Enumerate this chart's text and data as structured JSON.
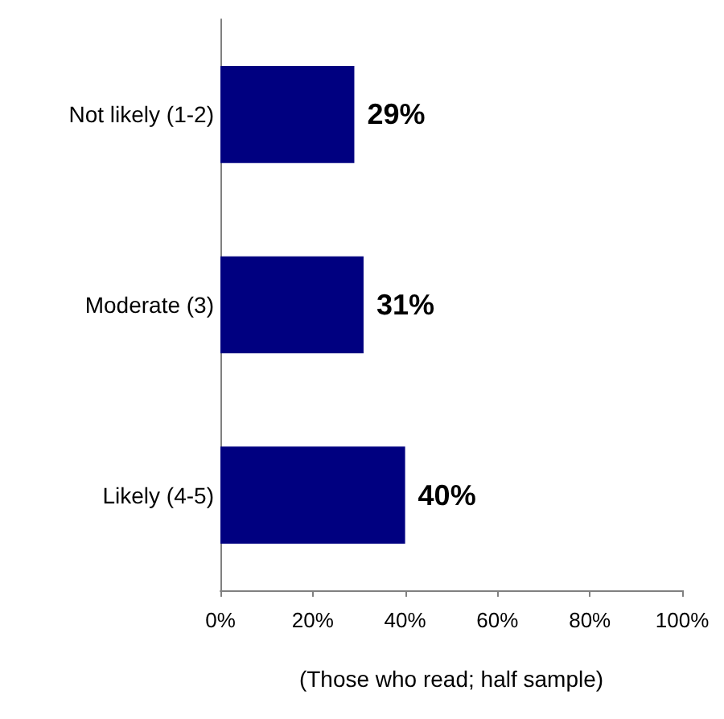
{
  "chart_data": {
    "type": "bar",
    "orientation": "horizontal",
    "categories": [
      "Not likely (1-2)",
      "Moderate (3)",
      "Likely (4-5)"
    ],
    "values": [
      29,
      31,
      40
    ],
    "value_labels": [
      "29%",
      "31%",
      "40%"
    ],
    "color": "#000080",
    "xlabel": "(Those who read; half sample)",
    "xlim": [
      0,
      100
    ],
    "xticks": [
      {
        "value": 0,
        "label": "0%"
      },
      {
        "value": 20,
        "label": "20%"
      },
      {
        "value": 40,
        "label": "40%"
      },
      {
        "value": 60,
        "label": "60%"
      },
      {
        "value": 80,
        "label": "80%"
      },
      {
        "value": 100,
        "label": "100%"
      }
    ],
    "data_labels": false
  }
}
